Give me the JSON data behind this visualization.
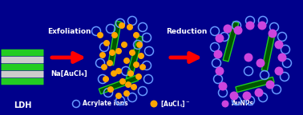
{
  "bg_color": "#00008B",
  "ldh_label": "LDH",
  "ldh_label_color": "#FFFFFF",
  "arrow1_label1": "Exfoliation",
  "arrow1_label2": "Na[AuCl₄]",
  "arrow2_label": "Reduction",
  "arrow_color": "#FF0000",
  "label_color": "#FFFFFF",
  "acrylate_color": "#6699FF",
  "aucl4_color": "#FFA500",
  "aunp_color": "#CC44DD",
  "sheet_fill": "#005500",
  "sheet_edge": "#22CC22",
  "ldh_green": "#22CC22",
  "ldh_white": "#CCCCCC",
  "fig_w": 3.78,
  "fig_h": 1.44,
  "dpi": 100
}
